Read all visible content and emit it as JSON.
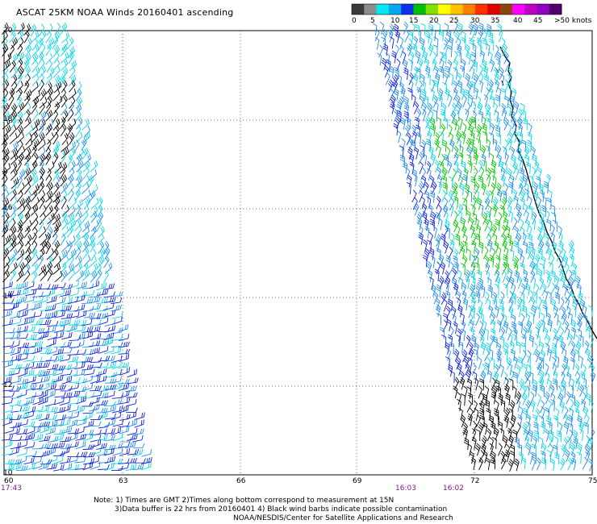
{
  "title": "ASCAT 25KM NOAA Winds 20160401 ascending",
  "legend": {
    "labels": [
      "0",
      "5",
      "10",
      "15",
      "20",
      "25",
      "30",
      "35",
      "40",
      "45",
      ">50 knots"
    ],
    "colors": [
      "#3a3a3a",
      "#8c8c8c",
      "#00e8f0",
      "#00a8f0",
      "#1030e8",
      "#00c000",
      "#80e000",
      "#ffff00",
      "#ffc000",
      "#ff8000",
      "#ff3000",
      "#e00000",
      "#8b4513",
      "#ff00ff",
      "#c000c0",
      "#9000c0",
      "#500070"
    ]
  },
  "map": {
    "lat_labels": [
      "20",
      "18",
      "16",
      "14",
      "12",
      "10"
    ],
    "lon_labels": [
      "60",
      "63",
      "66",
      "69",
      "72",
      "75"
    ],
    "times": [
      "17:43",
      "16:03",
      "16:02"
    ],
    "barb_colors": {
      "contaminated": "#000000",
      "cyan": "#00d8e8",
      "light_blue": "#1c8cf0",
      "blue": "#1020e0",
      "green": "#00c800"
    }
  },
  "notes": {
    "line1": "Note: 1) Times are GMT 2)Times along bottom correspond to measurement at 15N",
    "line2": "3)Data buffer is 22 hrs from 20160401 4) Black wind barbs indicate possible contamination",
    "line3": "NOAA/NESDIS/Center for Satellite Applications and Research"
  }
}
